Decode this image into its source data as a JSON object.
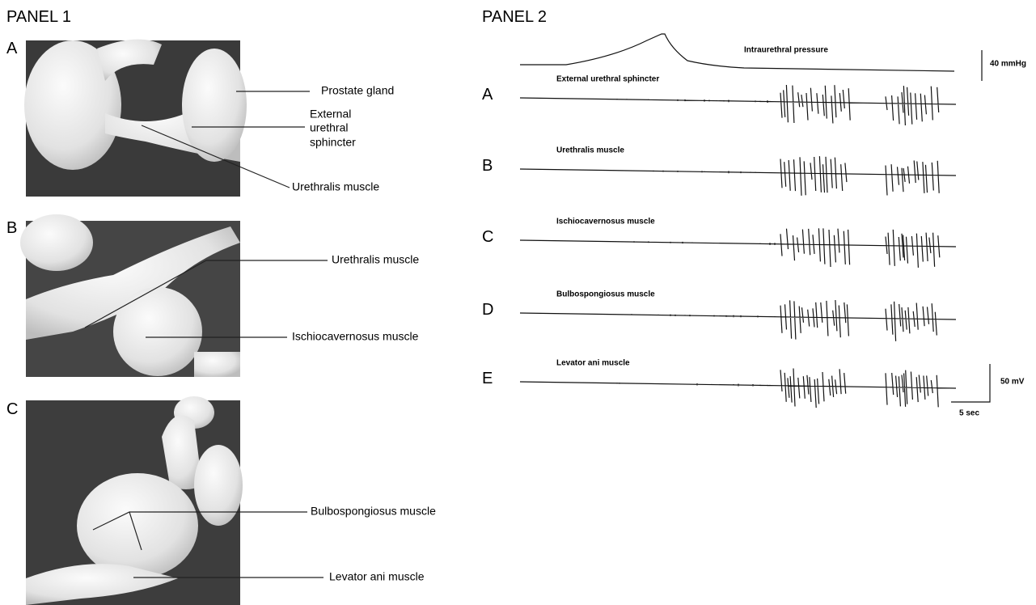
{
  "panel1": {
    "title": "PANEL 1",
    "photos": [
      {
        "letter": "A",
        "labels": [
          [
            "Prostate gland"
          ],
          [
            "External",
            "urethral",
            "sphincter"
          ],
          [
            "Urethralis muscle"
          ]
        ]
      },
      {
        "letter": "B",
        "labels": [
          [
            "Urethralis muscle"
          ],
          [
            "Ischiocavernosus muscle"
          ]
        ]
      },
      {
        "letter": "C",
        "labels": [
          [
            "Bulbospongiosus muscle"
          ],
          [
            "Levator ani muscle"
          ]
        ]
      }
    ]
  },
  "panel2": {
    "title": "PANEL 2",
    "pressure_label": "Intraurethral pressure",
    "pressure_scale": "40 mmHg",
    "traces": [
      {
        "letter": "A",
        "label": "External urethral sphincter"
      },
      {
        "letter": "B",
        "label": "Urethralis muscle"
      },
      {
        "letter": "C",
        "label": "Ischiocavernosus muscle"
      },
      {
        "letter": "D",
        "label": "Bulbospongiosus muscle"
      },
      {
        "letter": "E",
        "label": "Levator ani muscle"
      }
    ],
    "voltage_scale": "50 mV",
    "time_scale": "5 sec"
  }
}
